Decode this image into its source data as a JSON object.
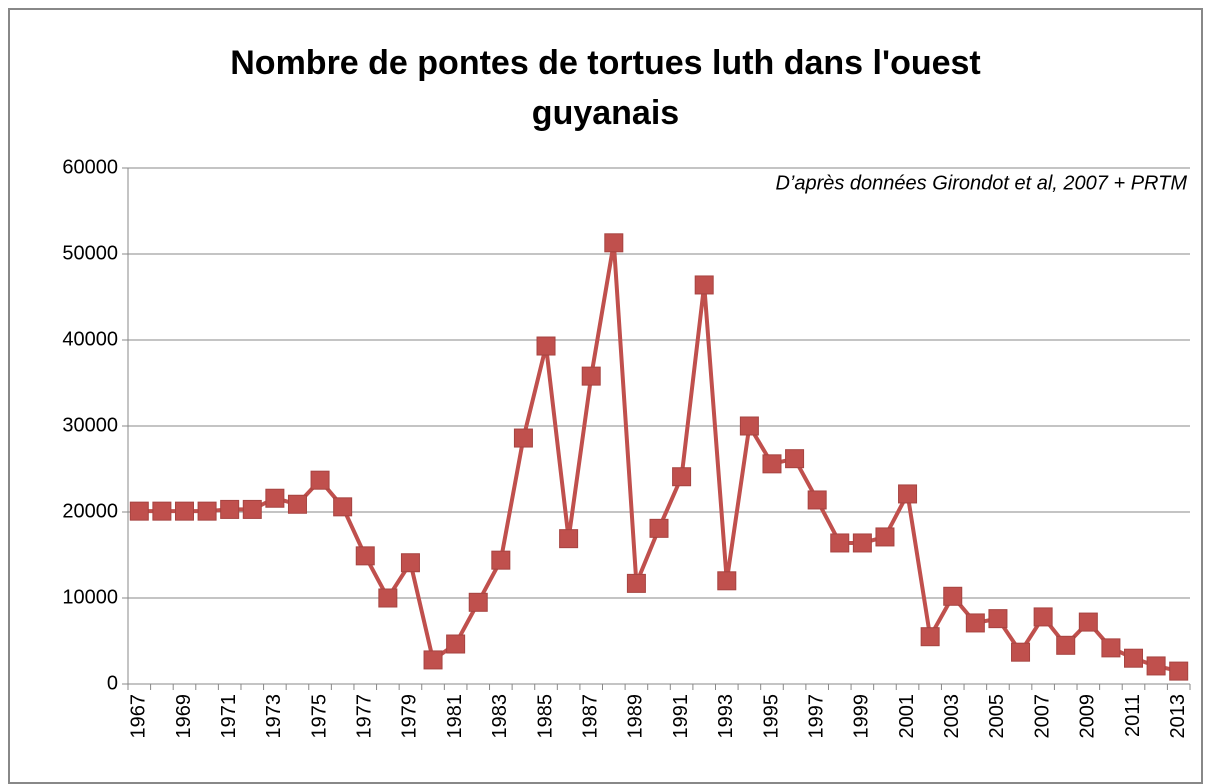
{
  "chart_data": {
    "type": "line",
    "title": "Nombre de pontes de tortues luth dans l'ouest guyanais",
    "annotation": "D’après données Girondot et al, 2007 + PRTM",
    "categories": [
      "1967",
      null,
      "1969",
      null,
      "1971",
      null,
      "1973",
      null,
      "1975",
      null,
      "1977",
      null,
      "1979",
      null,
      "1981",
      null,
      "1983",
      null,
      "1985",
      null,
      "1987",
      null,
      "1989",
      null,
      "1991",
      null,
      "1993",
      null,
      "1995",
      null,
      "1997",
      null,
      "1999",
      null,
      "2001",
      null,
      "2003",
      null,
      "2005",
      null,
      "2007",
      null,
      "2009",
      null,
      "2011",
      null,
      "2013"
    ],
    "series": [
      {
        "color": "#c0504d",
        "values": [
          20100,
          20100,
          20100,
          20100,
          20300,
          20300,
          21600,
          20900,
          23700,
          20600,
          14900,
          10000,
          14100,
          2800,
          4650,
          9500,
          14400,
          28600,
          39300,
          16900,
          35800,
          51300,
          11700,
          18100,
          24100,
          46400,
          12000,
          30000,
          25600,
          26200,
          21400,
          16400,
          16400,
          17100,
          22100,
          5500,
          10200,
          7100,
          7600,
          3700,
          7800,
          4500,
          7200,
          4200,
          3000,
          2100,
          1500
        ]
      }
    ],
    "ylim": [
      0,
      60000
    ],
    "yticks": [
      0,
      10000,
      20000,
      30000,
      40000,
      50000,
      60000
    ],
    "grid": true
  }
}
